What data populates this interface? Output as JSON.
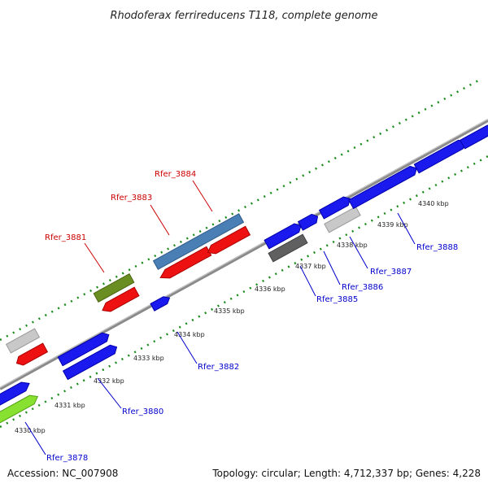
{
  "title": "Rhodoferax ferrireducens T118, complete genome",
  "footer": {
    "accession": "Accession: NC_007908",
    "summary": "Topology: circular; Length: 4,712,337 bp; Genes: 4,228"
  },
  "colors": {
    "forward_gene": "#1a1aee",
    "reverse_gene": "#ee1111",
    "highlight_gene": "#4a7fb5",
    "olive_gene": "#6b8e23",
    "lime_gene": "#88e030",
    "pseudo_gene": "#c8c8c8",
    "dark_gene": "#606060",
    "backbone": "#8a8a8a",
    "ticks": "#1a8a1a",
    "label_red": "#cc0000",
    "label_blue": "#0000cc"
  },
  "kbp_labels": [
    "4330 kbp",
    "4331 kbp",
    "4332 kbp",
    "4333 kbp",
    "4334 kbp",
    "4335 kbp",
    "4336 kbp",
    "4337 kbp",
    "4338 kbp",
    "4339 kbp",
    "4340 kbp"
  ],
  "gene_labels": [
    "Rfer_3878",
    "Rfer_3880",
    "Rfer_3881",
    "Rfer_3882",
    "Rfer_3883",
    "Rfer_3884",
    "Rfer_3885",
    "Rfer_3886",
    "Rfer_3887",
    "Rfer_3888"
  ]
}
